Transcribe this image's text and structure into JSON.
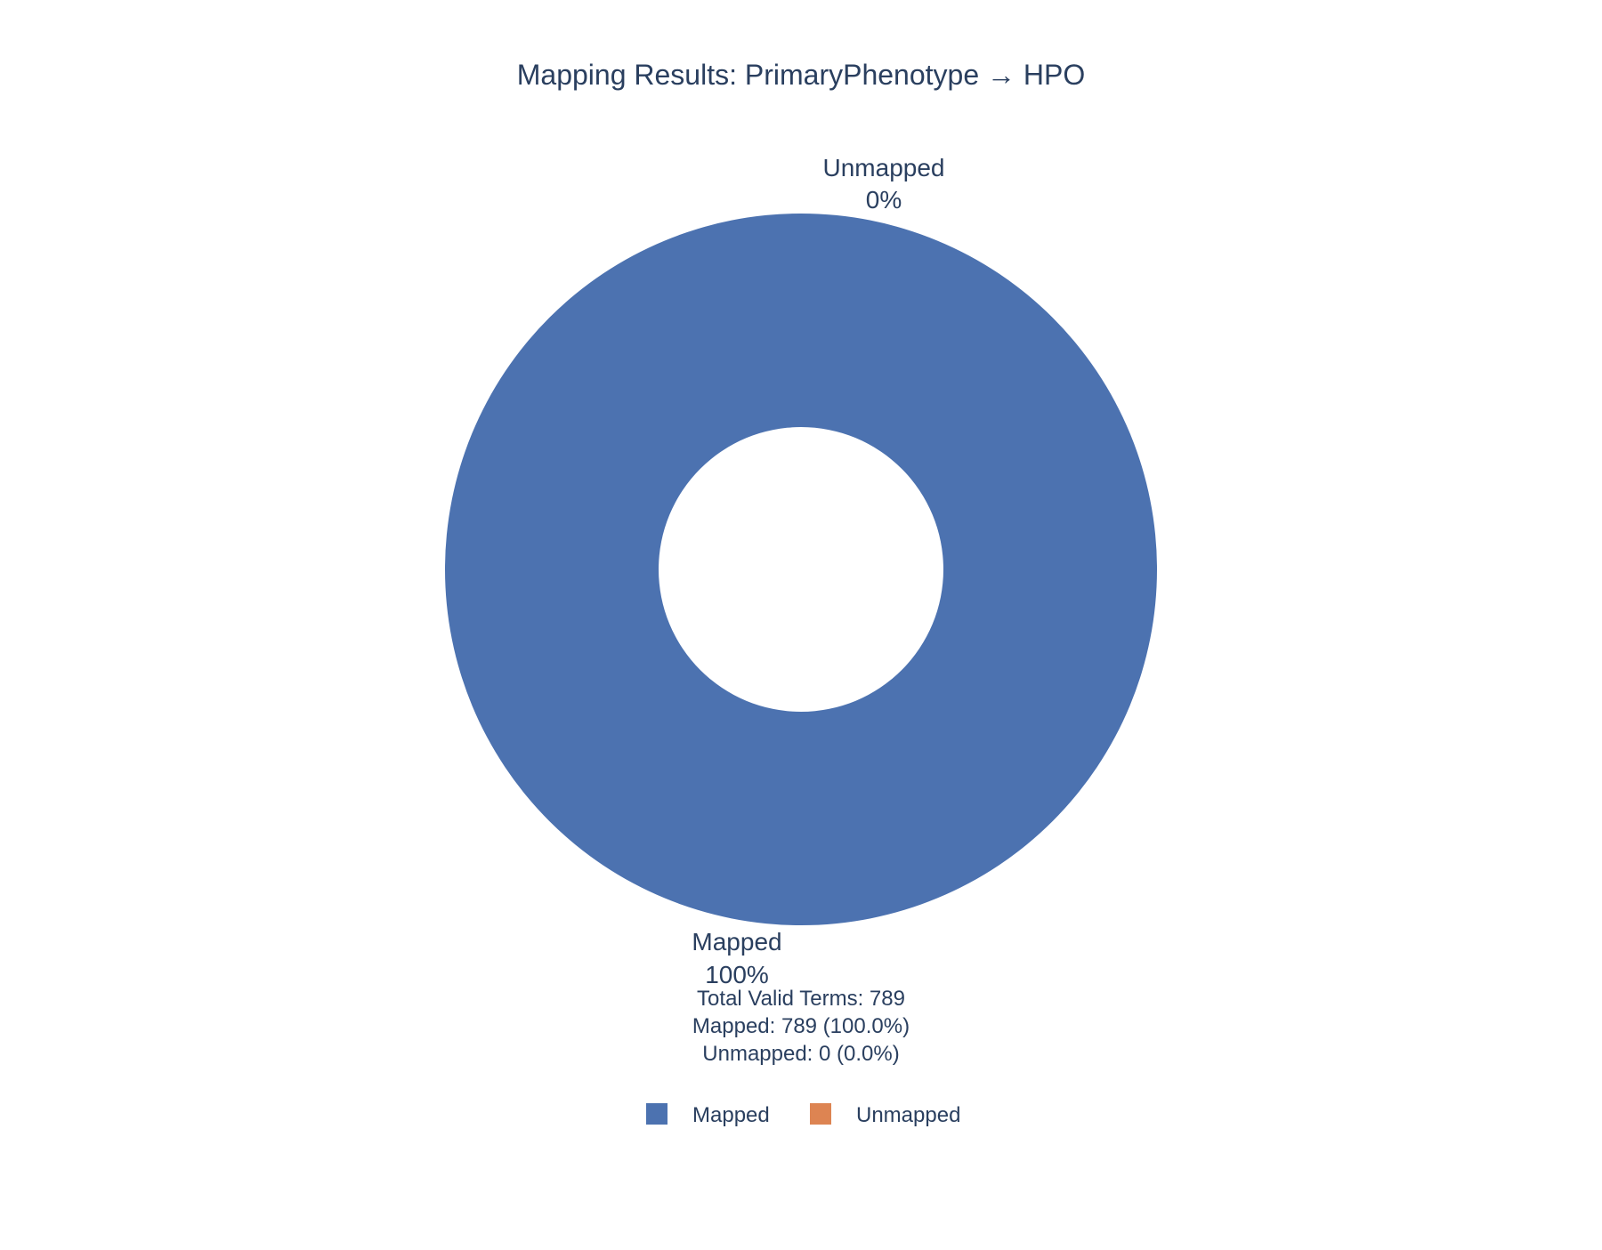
{
  "chart_data": {
    "type": "pie",
    "title": "Mapping Results: PrimaryPhenotype → HPO",
    "hole": 0.4,
    "labels": [
      "Mapped",
      "Unmapped"
    ],
    "values": [
      789,
      0
    ],
    "percent_labels": [
      "100%",
      "0%"
    ],
    "colors": [
      "#4c72b0",
      "#dd8452"
    ],
    "legend": {
      "position": "bottom",
      "entries": [
        "Mapped",
        "Unmapped"
      ]
    },
    "annotation": [
      "Total Valid Terms: 789",
      "Mapped: 789 (100.0%)",
      "Unmapped: 0 (0.0%)"
    ]
  }
}
